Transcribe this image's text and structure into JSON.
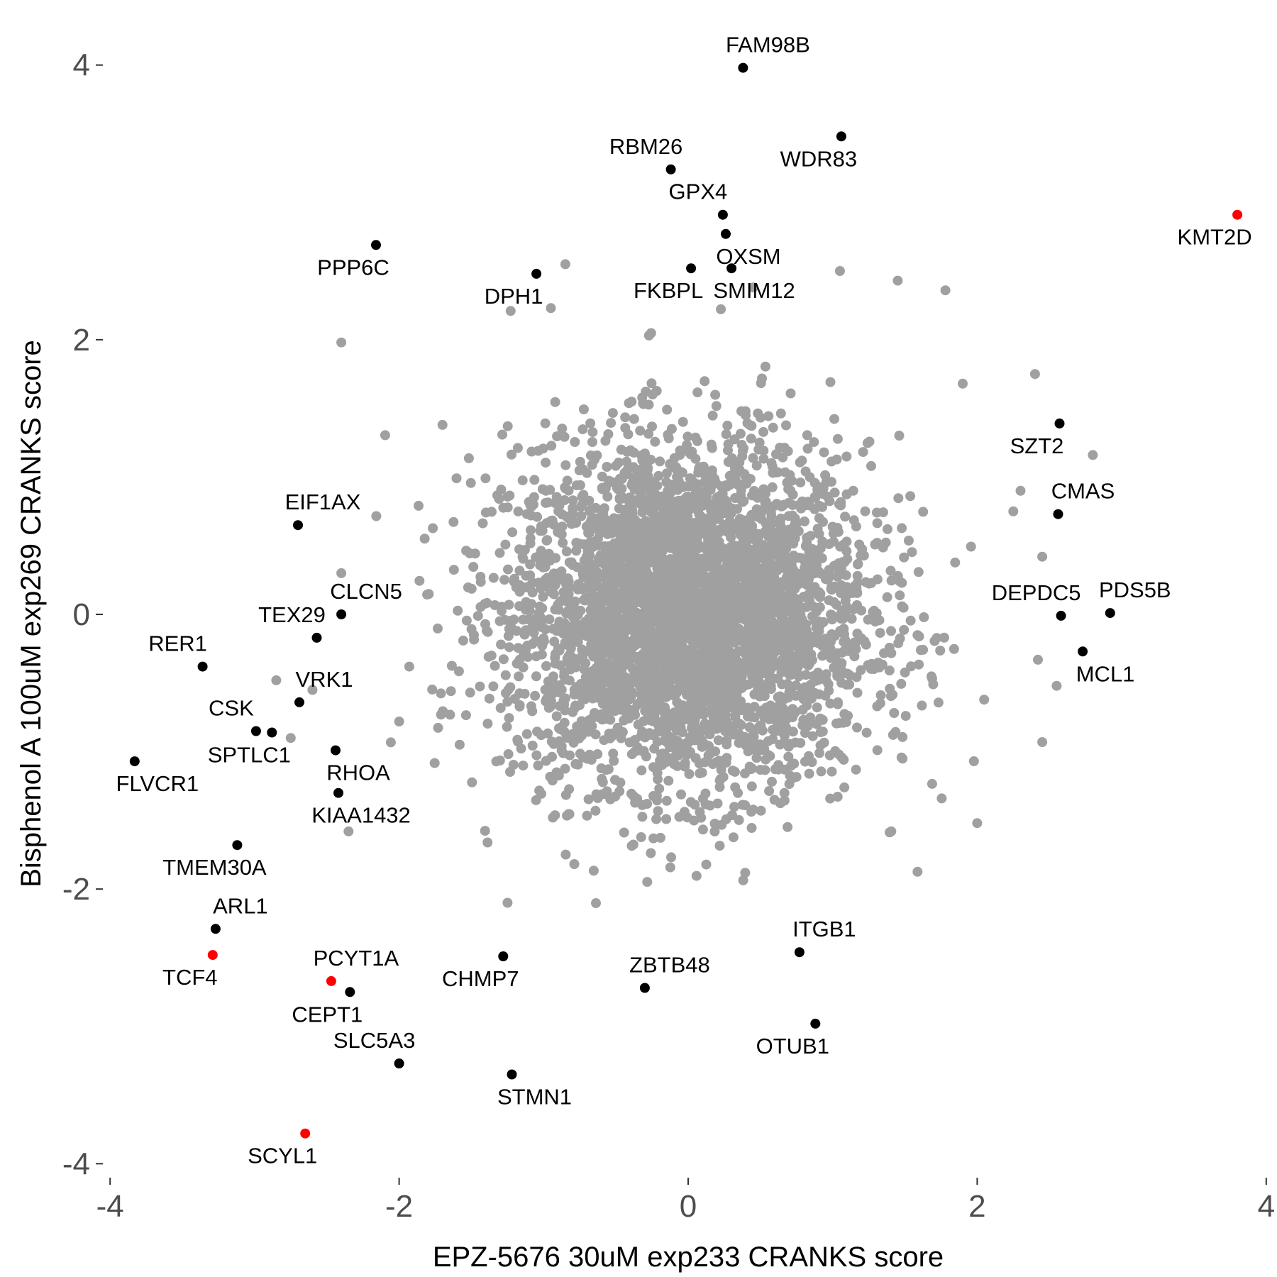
{
  "chart_data": {
    "type": "scatter",
    "xlabel": "EPZ-5676 30uM exp233 CRANKS score",
    "ylabel": "Bisphenol A 100uM exp269 CRANKS score",
    "xlim": [
      -4.05,
      4.05
    ],
    "ylim": [
      -4.05,
      4.05
    ],
    "x_ticks": [
      -4,
      -2,
      0,
      2,
      4
    ],
    "y_ticks": [
      -4,
      -2,
      0,
      2,
      4
    ],
    "x_tick_labels": [
      "-4",
      "-2",
      "0",
      "2",
      "4"
    ],
    "y_tick_labels": [
      "-4",
      "-2",
      "0",
      "2",
      "4"
    ],
    "grid": false,
    "legend": "none",
    "colors": {
      "background_points": "#a0a0a0",
      "highlighted": "#000000",
      "emphasized": "#ff0000"
    },
    "background_points": {
      "description_count": 4000,
      "center": [
        0.0,
        0.0
      ],
      "spread": [
        0.62,
        0.62
      ],
      "outliers": [
        [
          -0.85,
          2.55
        ],
        [
          0.45,
          2.38
        ],
        [
          1.05,
          2.5
        ],
        [
          1.45,
          2.43
        ],
        [
          1.78,
          2.36
        ],
        [
          -2.4,
          1.98
        ],
        [
          1.9,
          1.68
        ],
        [
          2.4,
          1.75
        ],
        [
          2.8,
          1.16
        ],
        [
          2.3,
          0.9
        ],
        [
          2.25,
          0.75
        ],
        [
          2.45,
          0.42
        ],
        [
          2.42,
          -0.33
        ],
        [
          2.55,
          -0.52
        ],
        [
          2.45,
          -0.93
        ],
        [
          -2.4,
          0.3
        ],
        [
          -2.85,
          -0.48
        ],
        [
          -2.6,
          -0.55
        ],
        [
          -2.75,
          -0.9
        ],
        [
          -2.35,
          -1.58
        ],
        [
          -2.0,
          -0.78
        ],
        [
          -1.93,
          -0.38
        ],
        [
          -1.7,
          1.38
        ],
        [
          -0.95,
          2.23
        ],
        [
          2.0,
          -1.52
        ],
        [
          -1.25,
          -2.1
        ]
      ]
    },
    "labeled_points": [
      {
        "name": "FAM98B",
        "x": 0.38,
        "y": 3.98,
        "color": "black",
        "label_pos": "top"
      },
      {
        "name": "WDR83",
        "x": 1.06,
        "y": 3.48,
        "color": "black",
        "label_pos": "bottom-left"
      },
      {
        "name": "RBM26",
        "x": -0.12,
        "y": 3.24,
        "color": "black",
        "label_pos": "top-left"
      },
      {
        "name": "GPX4",
        "x": 0.24,
        "y": 2.91,
        "color": "black",
        "label_pos": "top-left"
      },
      {
        "name": "OXSM",
        "x": 0.26,
        "y": 2.77,
        "color": "black",
        "label_pos": "bottom-right"
      },
      {
        "name": "KMT2D",
        "x": 3.8,
        "y": 2.91,
        "color": "red",
        "label_pos": "bottom-left"
      },
      {
        "name": "PPP6C",
        "x": -2.16,
        "y": 2.69,
        "color": "black",
        "label_pos": "bottom-left"
      },
      {
        "name": "DPH1",
        "x": -1.05,
        "y": 2.48,
        "color": "black",
        "label_pos": "bottom-left"
      },
      {
        "name": "FKBPL",
        "x": 0.02,
        "y": 2.52,
        "color": "black",
        "label_pos": "bottom-left"
      },
      {
        "name": "SMIM12",
        "x": 0.3,
        "y": 2.52,
        "color": "black",
        "label_pos": "bottom-right"
      },
      {
        "name": "SZT2",
        "x": 2.57,
        "y": 1.39,
        "color": "black",
        "label_pos": "bottom-left"
      },
      {
        "name": "CMAS",
        "x": 2.56,
        "y": 0.73,
        "color": "black",
        "label_pos": "top-right"
      },
      {
        "name": "EIF1AX",
        "x": -2.7,
        "y": 0.65,
        "color": "black",
        "label_pos": "top-right"
      },
      {
        "name": "CLCN5",
        "x": -2.4,
        "y": 0.0,
        "color": "black",
        "label_pos": "top-right"
      },
      {
        "name": "DEPDC5",
        "x": 2.58,
        "y": -0.01,
        "color": "black",
        "label_pos": "top-left"
      },
      {
        "name": "PDS5B",
        "x": 2.92,
        "y": 0.01,
        "color": "black",
        "label_pos": "top-right"
      },
      {
        "name": "TEX29",
        "x": -2.57,
        "y": -0.17,
        "color": "black",
        "label_pos": "top-left"
      },
      {
        "name": "RER1",
        "x": -3.36,
        "y": -0.38,
        "color": "black",
        "label_pos": "top-left"
      },
      {
        "name": "MCL1",
        "x": 2.73,
        "y": -0.27,
        "color": "black",
        "label_pos": "bottom-right"
      },
      {
        "name": "VRK1",
        "x": -2.69,
        "y": -0.64,
        "color": "black",
        "label_pos": "top-right"
      },
      {
        "name": "CSK",
        "x": -2.99,
        "y": -0.85,
        "color": "black",
        "label_pos": "top-left"
      },
      {
        "name": "SPTLC1",
        "x": -2.88,
        "y": -0.86,
        "color": "black",
        "label_pos": "bottom-left"
      },
      {
        "name": "RHOA",
        "x": -2.44,
        "y": -0.99,
        "color": "black",
        "label_pos": "bottom-right"
      },
      {
        "name": "FLVCR1",
        "x": -3.83,
        "y": -1.07,
        "color": "black",
        "label_pos": "bottom-right"
      },
      {
        "name": "KIAA1432",
        "x": -2.42,
        "y": -1.3,
        "color": "black",
        "label_pos": "bottom-right"
      },
      {
        "name": "TMEM30A",
        "x": -3.12,
        "y": -1.68,
        "color": "black",
        "label_pos": "bottom-left"
      },
      {
        "name": "ARL1",
        "x": -3.27,
        "y": -2.29,
        "color": "black",
        "label_pos": "top-right"
      },
      {
        "name": "TCF4",
        "x": -3.29,
        "y": -2.48,
        "color": "red",
        "label_pos": "bottom-left"
      },
      {
        "name": "PCYT1A",
        "x": -2.47,
        "y": -2.67,
        "color": "red",
        "label_pos": "top-right"
      },
      {
        "name": "CEPT1",
        "x": -2.34,
        "y": -2.75,
        "color": "black",
        "label_pos": "bottom-left"
      },
      {
        "name": "CHMP7",
        "x": -1.28,
        "y": -2.49,
        "color": "black",
        "label_pos": "bottom-left"
      },
      {
        "name": "ZBTB48",
        "x": -0.3,
        "y": -2.72,
        "color": "black",
        "label_pos": "top-right"
      },
      {
        "name": "ITGB1",
        "x": 0.77,
        "y": -2.46,
        "color": "black",
        "label_pos": "top-right"
      },
      {
        "name": "OTUB1",
        "x": 0.88,
        "y": -2.98,
        "color": "black",
        "label_pos": "bottom-left"
      },
      {
        "name": "SLC5A3",
        "x": -2.0,
        "y": -3.27,
        "color": "black",
        "label_pos": "top-left"
      },
      {
        "name": "STMN1",
        "x": -1.22,
        "y": -3.35,
        "color": "black",
        "label_pos": "bottom-right"
      },
      {
        "name": "SCYL1",
        "x": -2.65,
        "y": -3.78,
        "color": "red",
        "label_pos": "bottom-left"
      }
    ]
  }
}
